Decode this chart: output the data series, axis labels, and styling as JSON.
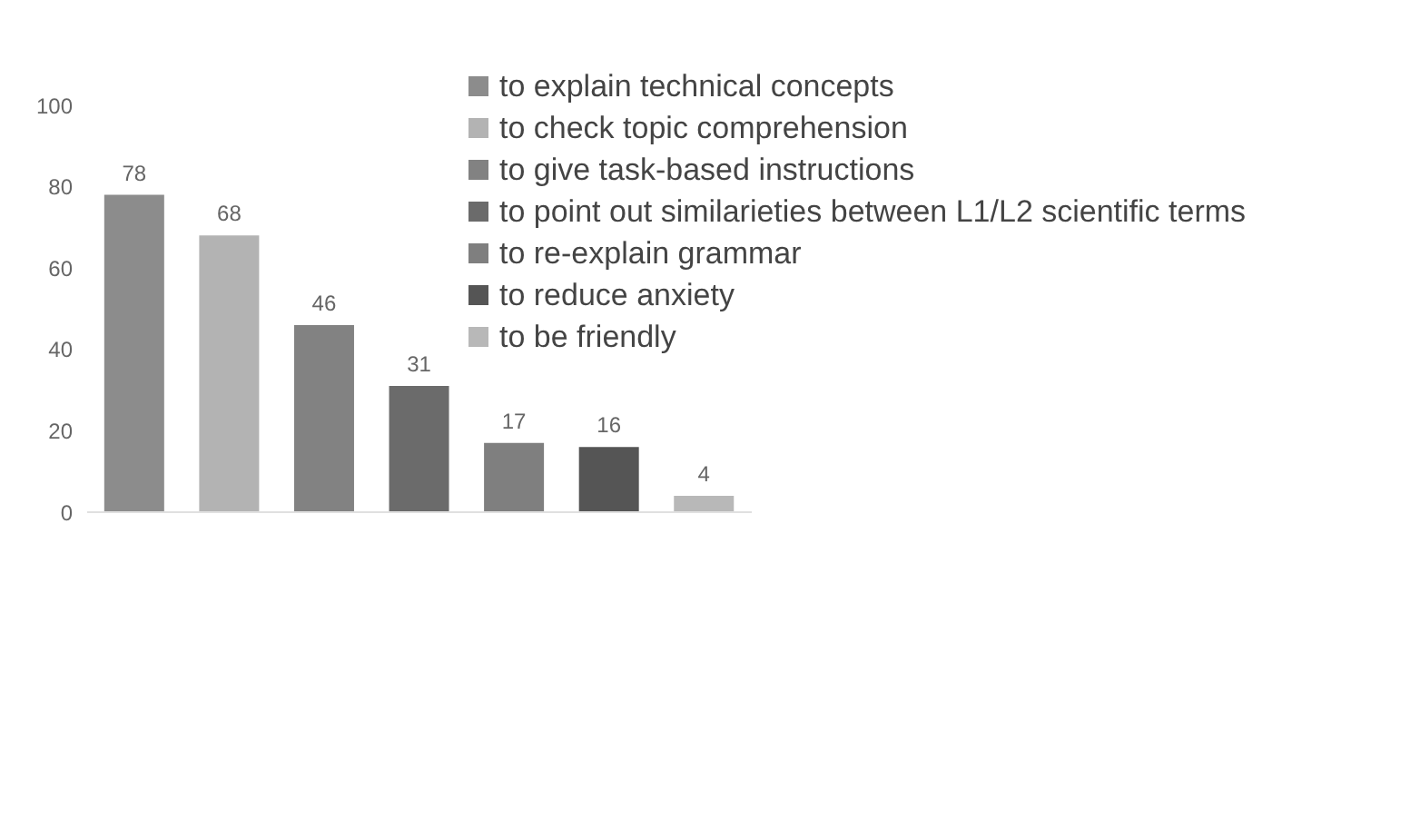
{
  "chart_data": {
    "type": "bar",
    "categories": [
      null,
      null,
      null,
      null,
      null,
      null,
      null
    ],
    "series": [
      {
        "name": "to explain technical concepts",
        "color": "#8c8c8c",
        "values": [
          78,
          null,
          null,
          null,
          null,
          null,
          null
        ]
      },
      {
        "name": "to check topic comprehension",
        "color": "#b3b3b3",
        "values": [
          null,
          68,
          null,
          null,
          null,
          null,
          null
        ]
      },
      {
        "name": "to give task-based instructions",
        "color": "#828282",
        "values": [
          null,
          null,
          46,
          null,
          null,
          null,
          null
        ]
      },
      {
        "name": "to point out similarieties between L1/L2 scientific terms",
        "color": "#6b6b6b",
        "values": [
          null,
          null,
          null,
          31,
          null,
          null,
          null
        ]
      },
      {
        "name": "to re-explain grammar",
        "color": "#7f7f7f",
        "values": [
          null,
          null,
          null,
          null,
          17,
          null,
          null
        ]
      },
      {
        "name": "to reduce anxiety",
        "color": "#555555",
        "values": [
          null,
          null,
          null,
          null,
          null,
          16,
          null
        ]
      },
      {
        "name": "to be friendly",
        "color": "#b8b8b8",
        "values": [
          null,
          null,
          null,
          null,
          null,
          null,
          4
        ]
      }
    ],
    "ylim": [
      0,
      100
    ],
    "yticks": [
      0,
      20,
      40,
      60,
      80,
      100
    ],
    "grid": false,
    "legend": "top right",
    "data_labels": true
  }
}
